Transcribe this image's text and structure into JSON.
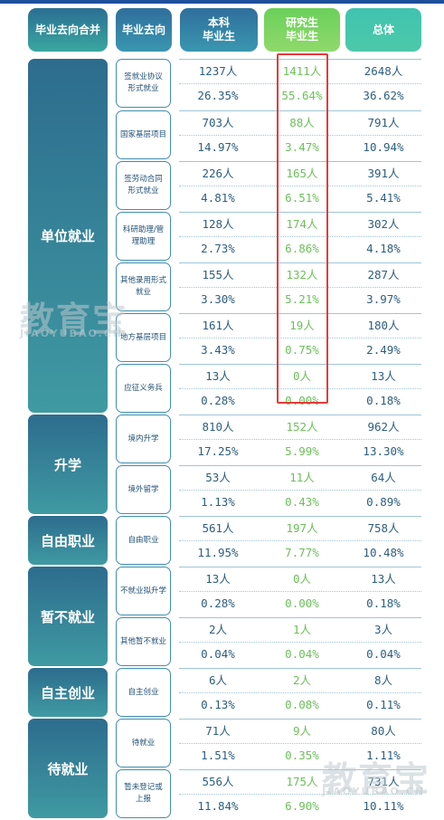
{
  "headers": {
    "category": "毕业去向合并",
    "destination": "毕业去向",
    "undergrad": "本科\n毕业生",
    "graduate": "研究生\n毕业生",
    "total": "总体"
  },
  "categories": [
    {
      "label": "单位就业"
    },
    {
      "label": "升学"
    },
    {
      "label": "自由职业"
    },
    {
      "label": "暂不就业"
    },
    {
      "label": "自主创业"
    },
    {
      "label": "待就业"
    }
  ],
  "rows": [
    {
      "label": "签就业协议\n形式就业",
      "u_count": "1237人",
      "u_pct": "26.35%",
      "g_count": "1411人",
      "g_pct": "55.64%",
      "t_count": "2648人",
      "t_pct": "36.62%"
    },
    {
      "label": "国家基层项目",
      "u_count": "703人",
      "u_pct": "14.97%",
      "g_count": "88人",
      "g_pct": "3.47%",
      "t_count": "791人",
      "t_pct": "10.94%"
    },
    {
      "label": "签劳动合同\n形式就业",
      "u_count": "226人",
      "u_pct": "4.81%",
      "g_count": "165人",
      "g_pct": "6.51%",
      "t_count": "391人",
      "t_pct": "5.41%"
    },
    {
      "label": "科研助理/管\n理助理",
      "u_count": "128人",
      "u_pct": "2.73%",
      "g_count": "174人",
      "g_pct": "6.86%",
      "t_count": "302人",
      "t_pct": "4.18%"
    },
    {
      "label": "其他录用形式\n就业",
      "u_count": "155人",
      "u_pct": "3.30%",
      "g_count": "132人",
      "g_pct": "5.21%",
      "t_count": "287人",
      "t_pct": "3.97%"
    },
    {
      "label": "地方基层项目",
      "u_count": "161人",
      "u_pct": "3.43%",
      "g_count": "19人",
      "g_pct": "0.75%",
      "t_count": "180人",
      "t_pct": "2.49%"
    },
    {
      "label": "应征义务兵",
      "u_count": "13人",
      "u_pct": "0.28%",
      "g_count": "0人",
      "g_pct": "0.00%",
      "t_count": "13人",
      "t_pct": "0.18%"
    },
    {
      "label": "境内升学",
      "u_count": "810人",
      "u_pct": "17.25%",
      "g_count": "152人",
      "g_pct": "5.99%",
      "t_count": "962人",
      "t_pct": "13.30%"
    },
    {
      "label": "境外留学",
      "u_count": "53人",
      "u_pct": "1.13%",
      "g_count": "11人",
      "g_pct": "0.43%",
      "t_count": "64人",
      "t_pct": "0.89%"
    },
    {
      "label": "自由职业",
      "u_count": "561人",
      "u_pct": "11.95%",
      "g_count": "197人",
      "g_pct": "7.77%",
      "t_count": "758人",
      "t_pct": "10.48%"
    },
    {
      "label": "不就业拟升学",
      "u_count": "13人",
      "u_pct": "0.28%",
      "g_count": "0人",
      "g_pct": "0.00%",
      "t_count": "13人",
      "t_pct": "0.18%"
    },
    {
      "label": "其他暂不就业",
      "u_count": "2人",
      "u_pct": "0.04%",
      "g_count": "1人",
      "g_pct": "0.04%",
      "t_count": "3人",
      "t_pct": "0.04%"
    },
    {
      "label": "自主创业",
      "u_count": "6人",
      "u_pct": "0.13%",
      "g_count": "2人",
      "g_pct": "0.08%",
      "t_count": "8人",
      "t_pct": "0.11%"
    },
    {
      "label": "待就业",
      "u_count": "71人",
      "u_pct": "1.51%",
      "g_count": "9人",
      "g_pct": "0.35%",
      "t_count": "80人",
      "t_pct": "1.11%"
    },
    {
      "label": "暂未登记或\n上报",
      "u_count": "556人",
      "u_pct": "11.84%",
      "g_count": "175人",
      "g_pct": "6.90%",
      "t_count": "731人",
      "t_pct": "10.11%"
    }
  ],
  "watermark": {
    "logo_text": "教育宝",
    "site_text": "JIAOYUBAO.CN"
  },
  "colors": {
    "header_dark": "#2a6e93",
    "graduate_green": "#6cc05a",
    "highlight_red": "#e23b3b",
    "topbar_blue": "#1d4f9a"
  }
}
